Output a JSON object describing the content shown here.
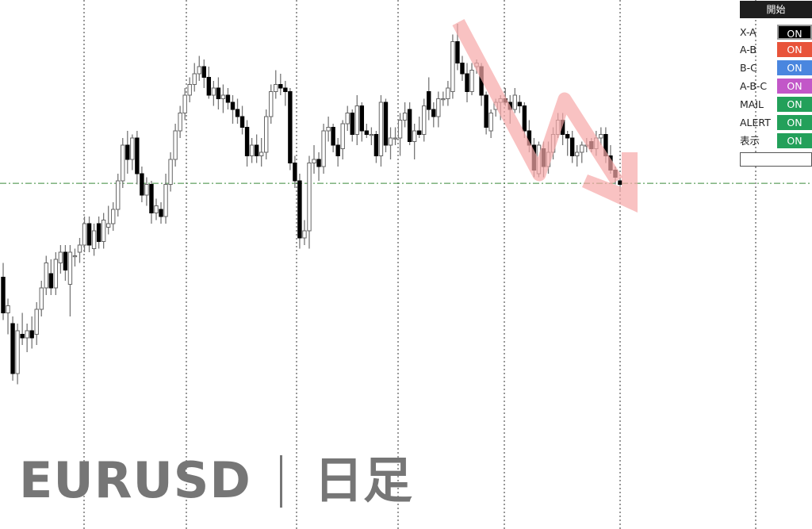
{
  "title": {
    "symbol": "EURUSD",
    "timeframe": "日足"
  },
  "panel": {
    "start_label": "開始",
    "rows": [
      {
        "label": "X-A",
        "state": "ON",
        "color": "#000000"
      },
      {
        "label": "A-B",
        "state": "ON",
        "color": "#e8533a"
      },
      {
        "label": "B-C",
        "state": "ON",
        "color": "#4a86df"
      },
      {
        "label": "A-B-C",
        "state": "ON",
        "color": "#c257c8"
      },
      {
        "label": "MAIL",
        "state": "ON",
        "color": "#23a05a"
      },
      {
        "label": "ALERT",
        "state": "ON",
        "color": "#23a05a"
      },
      {
        "label": "表示",
        "state": "ON",
        "color": "#23a05a"
      }
    ],
    "input_value": ""
  },
  "chart_data": {
    "type": "candlestick",
    "note_units": "relative",
    "ylim": [
      -2,
      104
    ],
    "grid": "vertical dotted period separators",
    "horizontal_level": 55.3,
    "level_color": "#3a8a3a",
    "bull_color": "#ffffff",
    "bear_color": "#000000",
    "arrow_color": "#f7a8a8",
    "candles": [
      [
        29,
        33,
        17,
        19
      ],
      [
        19,
        23,
        13,
        21
      ],
      [
        16,
        18,
        0,
        2
      ],
      [
        2,
        16,
        -1,
        14
      ],
      [
        13,
        19,
        10,
        12
      ],
      [
        12,
        16,
        8,
        14
      ],
      [
        14,
        18,
        9,
        12
      ],
      [
        13,
        22,
        10,
        20
      ],
      [
        20,
        28,
        18,
        26
      ],
      [
        26,
        35,
        24,
        33
      ],
      [
        30,
        34,
        24,
        26
      ],
      [
        26,
        36,
        24,
        34
      ],
      [
        33,
        38,
        30,
        36
      ],
      [
        36,
        38,
        28,
        31
      ],
      [
        27,
        38,
        18,
        36
      ],
      [
        35,
        37,
        32,
        35
      ],
      [
        36,
        40,
        33,
        38
      ],
      [
        38,
        46,
        36,
        44
      ],
      [
        44,
        46,
        36,
        38
      ],
      [
        37,
        44,
        35,
        42
      ],
      [
        44,
        46,
        37,
        39
      ],
      [
        39,
        47,
        37,
        45
      ],
      [
        43,
        49,
        41,
        44
      ],
      [
        44,
        50,
        42,
        48
      ],
      [
        48,
        58,
        46,
        56
      ],
      [
        56,
        68,
        54,
        66
      ],
      [
        66,
        70,
        58,
        62
      ],
      [
        62,
        69,
        59,
        68
      ],
      [
        68,
        70,
        55,
        58
      ],
      [
        58,
        60,
        50,
        52
      ],
      [
        52,
        57,
        49,
        55
      ],
      [
        55,
        56,
        44,
        47
      ],
      [
        47,
        51,
        45,
        49
      ],
      [
        48,
        50,
        44,
        46
      ],
      [
        46,
        58,
        44,
        55
      ],
      [
        55,
        64,
        53,
        62
      ],
      [
        62,
        72,
        60,
        70
      ],
      [
        70,
        77,
        68,
        75
      ],
      [
        75,
        82,
        73,
        80
      ],
      [
        80,
        85,
        78,
        83
      ],
      [
        83,
        89,
        81,
        86
      ],
      [
        86,
        91,
        84,
        88
      ],
      [
        88,
        90,
        82,
        85
      ],
      [
        85,
        88,
        79,
        80
      ],
      [
        80,
        84,
        77,
        82
      ],
      [
        82,
        85,
        76,
        79
      ],
      [
        79,
        83,
        75,
        80
      ],
      [
        80,
        82,
        76,
        78
      ],
      [
        78,
        80,
        72,
        76
      ],
      [
        76,
        79,
        72,
        74
      ],
      [
        74,
        77,
        69,
        71
      ],
      [
        71,
        73,
        60,
        63
      ],
      [
        63,
        68,
        61,
        66
      ],
      [
        66,
        69,
        61,
        63
      ],
      [
        63,
        68,
        60,
        64
      ],
      [
        64,
        76,
        62,
        74
      ],
      [
        74,
        83,
        72,
        81
      ],
      [
        81,
        87,
        79,
        83
      ],
      [
        83,
        86,
        80,
        82
      ],
      [
        82,
        84,
        77,
        81
      ],
      [
        81,
        82,
        59,
        61
      ],
      [
        61,
        63,
        54,
        56
      ],
      [
        56,
        58,
        37,
        40
      ],
      [
        40,
        45,
        38,
        42
      ],
      [
        42,
        63,
        37,
        61
      ],
      [
        61,
        66,
        58,
        62
      ],
      [
        62,
        64,
        56,
        60
      ],
      [
        60,
        72,
        58,
        70
      ],
      [
        70,
        74,
        67,
        71
      ],
      [
        71,
        72,
        64,
        66
      ],
      [
        66,
        68,
        60,
        63
      ],
      [
        65,
        73,
        62,
        72
      ],
      [
        72,
        77,
        70,
        75
      ],
      [
        75,
        76,
        67,
        69
      ],
      [
        69,
        80,
        66,
        77
      ],
      [
        77,
        78,
        67,
        70
      ],
      [
        70,
        72,
        68,
        69
      ],
      [
        69,
        71,
        66,
        69
      ],
      [
        69,
        70,
        61,
        63
      ],
      [
        63,
        80,
        60,
        78
      ],
      [
        78,
        79,
        64,
        66
      ],
      [
        66,
        71,
        62,
        68
      ],
      [
        68,
        71,
        66,
        68
      ],
      [
        68,
        75,
        63,
        73
      ],
      [
        73,
        78,
        71,
        75
      ],
      [
        76,
        78,
        66,
        67
      ],
      [
        67,
        72,
        62,
        70
      ],
      [
        70,
        74,
        68,
        69
      ],
      [
        69,
        79,
        67,
        77
      ],
      [
        81,
        85,
        73,
        76
      ],
      [
        76,
        78,
        71,
        74
      ],
      [
        74,
        81,
        71,
        79
      ],
      [
        79,
        81,
        77,
        79
      ],
      [
        79,
        84,
        77,
        82
      ],
      [
        81,
        97,
        79,
        95
      ],
      [
        95,
        100,
        87,
        89
      ],
      [
        89,
        91,
        84,
        86
      ],
      [
        86,
        89,
        78,
        81
      ],
      [
        81,
        89,
        80,
        87
      ],
      [
        88,
        90,
        86,
        89
      ],
      [
        88,
        89,
        77,
        80
      ],
      [
        80,
        81,
        69,
        71
      ],
      [
        70,
        76,
        68,
        75
      ],
      [
        76,
        79,
        74,
        78
      ],
      [
        78,
        80,
        73,
        79
      ],
      [
        79,
        82,
        77,
        78
      ],
      [
        78,
        80,
        72,
        76
      ],
      [
        76,
        82,
        75,
        80
      ],
      [
        78,
        80,
        75,
        77
      ],
      [
        77,
        78,
        68,
        70
      ],
      [
        70,
        73,
        64,
        66
      ],
      [
        66,
        68,
        57,
        59
      ],
      [
        58,
        67,
        57,
        66
      ],
      [
        65,
        67,
        57,
        60
      ],
      [
        60,
        67,
        58,
        64
      ],
      [
        64,
        71,
        62,
        69
      ],
      [
        69,
        75,
        68,
        73
      ],
      [
        73,
        75,
        66,
        69
      ],
      [
        69,
        70,
        63,
        68
      ],
      [
        68,
        70,
        61,
        63
      ],
      [
        63,
        66,
        60,
        64
      ],
      [
        64,
        67,
        61,
        66
      ],
      [
        66,
        68,
        64,
        66
      ],
      [
        67,
        68,
        64,
        65
      ],
      [
        65,
        70,
        63,
        68
      ],
      [
        68,
        71,
        66,
        69
      ],
      [
        69,
        71,
        61,
        63
      ],
      [
        63,
        66,
        58,
        59
      ],
      [
        59,
        60,
        55,
        57
      ],
      [
        56,
        57,
        53,
        55
      ]
    ]
  }
}
